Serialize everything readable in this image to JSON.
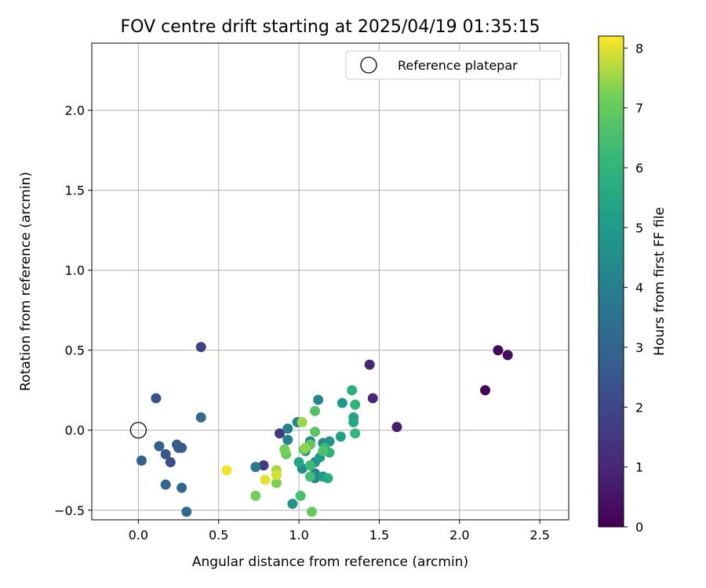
{
  "chart_data": {
    "type": "scatter",
    "title": "FOV centre drift starting at 2025/04/19 01:35:15",
    "xlabel": "Angular distance from reference (arcmin)",
    "ylabel": "Rotation from reference (arcmin)",
    "xlim": [
      -0.29,
      2.68
    ],
    "ylim": [
      -0.56,
      2.42
    ],
    "xticks": [
      "0.0",
      "0.5",
      "1.0",
      "1.5",
      "2.0",
      "2.5"
    ],
    "xtick_values": [
      0.0,
      0.5,
      1.0,
      1.5,
      2.0,
      2.5
    ],
    "yticks": [
      "−0.5",
      "0.0",
      "0.5",
      "1.0",
      "1.5",
      "2.0"
    ],
    "ytick_values": [
      -0.5,
      0.0,
      0.5,
      1.0,
      1.5,
      2.0
    ],
    "grid": true,
    "legend": {
      "position": "top-right",
      "entries": [
        "Reference platepar"
      ]
    },
    "reference_point": {
      "x": 0.0,
      "y": 0.0,
      "label": "Reference platepar"
    },
    "colorbar": {
      "label": "Hours from first FF file",
      "colormap": "viridis",
      "range": [
        0,
        8.2
      ],
      "ticks": [
        "0",
        "1",
        "2",
        "3",
        "4",
        "5",
        "6",
        "7",
        "8"
      ],
      "tick_values": [
        0,
        1,
        2,
        3,
        4,
        5,
        6,
        7,
        8
      ]
    },
    "points": [
      {
        "x": 2.16,
        "y": 0.25,
        "c": 0.05
      },
      {
        "x": 2.24,
        "y": 0.5,
        "c": 0.15
      },
      {
        "x": 2.3,
        "y": 0.47,
        "c": 0.25
      },
      {
        "x": 1.61,
        "y": 0.02,
        "c": 0.8
      },
      {
        "x": 1.44,
        "y": 0.41,
        "c": 1.0
      },
      {
        "x": 1.46,
        "y": 0.2,
        "c": 1.0
      },
      {
        "x": 0.88,
        "y": -0.02,
        "c": 1.5
      },
      {
        "x": 0.78,
        "y": -0.22,
        "c": 1.6
      },
      {
        "x": 0.39,
        "y": 0.52,
        "c": 1.9
      },
      {
        "x": 0.11,
        "y": 0.2,
        "c": 2.3
      },
      {
        "x": 0.2,
        "y": -0.2,
        "c": 2.2
      },
      {
        "x": 0.27,
        "y": -0.11,
        "c": 2.6
      },
      {
        "x": 0.17,
        "y": -0.15,
        "c": 2.5
      },
      {
        "x": 0.13,
        "y": -0.1,
        "c": 2.8
      },
      {
        "x": 0.24,
        "y": -0.09,
        "c": 2.7
      },
      {
        "x": 0.25,
        "y": -0.11,
        "c": 2.7
      },
      {
        "x": 0.02,
        "y": -0.19,
        "c": 2.9
      },
      {
        "x": 0.17,
        "y": -0.34,
        "c": 3.0
      },
      {
        "x": 0.27,
        "y": -0.36,
        "c": 3.1
      },
      {
        "x": 0.3,
        "y": -0.51,
        "c": 3.2
      },
      {
        "x": 0.39,
        "y": 0.08,
        "c": 3.2
      },
      {
        "x": 0.73,
        "y": -0.23,
        "c": 3.7
      },
      {
        "x": 0.93,
        "y": 0.01,
        "c": 3.9
      },
      {
        "x": 0.93,
        "y": -0.06,
        "c": 4.1
      },
      {
        "x": 0.99,
        "y": 0.05,
        "c": 4.3
      },
      {
        "x": 1.12,
        "y": 0.19,
        "c": 4.3
      },
      {
        "x": 1.07,
        "y": -0.07,
        "c": 4.2
      },
      {
        "x": 1.1,
        "y": -0.27,
        "c": 4.2
      },
      {
        "x": 1.1,
        "y": -0.3,
        "c": 4.3
      },
      {
        "x": 1.02,
        "y": -0.24,
        "c": 4.5
      },
      {
        "x": 1.15,
        "y": -0.08,
        "c": 4.5
      },
      {
        "x": 1.19,
        "y": -0.07,
        "c": 4.7
      },
      {
        "x": 1.1,
        "y": -0.2,
        "c": 4.6
      },
      {
        "x": 1.04,
        "y": -0.13,
        "c": 4.4
      },
      {
        "x": 0.96,
        "y": -0.46,
        "c": 4.8
      },
      {
        "x": 1.13,
        "y": -0.17,
        "c": 5.0
      },
      {
        "x": 1.15,
        "y": -0.29,
        "c": 5.0
      },
      {
        "x": 1.27,
        "y": 0.17,
        "c": 5.0
      },
      {
        "x": 1.26,
        "y": -0.04,
        "c": 5.2
      },
      {
        "x": 1.34,
        "y": 0.08,
        "c": 5.3
      },
      {
        "x": 1.34,
        "y": 0.05,
        "c": 5.5
      },
      {
        "x": 1.0,
        "y": -0.2,
        "c": 5.4
      },
      {
        "x": 1.18,
        "y": -0.3,
        "c": 5.6
      },
      {
        "x": 1.33,
        "y": 0.25,
        "c": 5.8
      },
      {
        "x": 1.35,
        "y": 0.16,
        "c": 6.0
      },
      {
        "x": 1.35,
        "y": -0.02,
        "c": 6.1
      },
      {
        "x": 1.19,
        "y": -0.14,
        "c": 6.0
      },
      {
        "x": 1.16,
        "y": -0.11,
        "c": 6.2
      },
      {
        "x": 1.07,
        "y": -0.22,
        "c": 6.3
      },
      {
        "x": 1.07,
        "y": -0.29,
        "c": 6.4
      },
      {
        "x": 1.01,
        "y": -0.41,
        "c": 6.5
      },
      {
        "x": 1.15,
        "y": -0.13,
        "c": 6.6
      },
      {
        "x": 1.1,
        "y": 0.12,
        "c": 6.7
      },
      {
        "x": 1.1,
        "y": -0.01,
        "c": 6.8
      },
      {
        "x": 1.07,
        "y": -0.09,
        "c": 6.9
      },
      {
        "x": 1.03,
        "y": -0.12,
        "c": 7.0
      },
      {
        "x": 1.08,
        "y": -0.51,
        "c": 7.0
      },
      {
        "x": 0.92,
        "y": -0.15,
        "c": 7.1
      },
      {
        "x": 0.91,
        "y": -0.12,
        "c": 7.2
      },
      {
        "x": 0.86,
        "y": -0.33,
        "c": 7.3
      },
      {
        "x": 0.73,
        "y": -0.41,
        "c": 7.2
      },
      {
        "x": 1.04,
        "y": -0.11,
        "c": 7.4
      },
      {
        "x": 1.02,
        "y": 0.05,
        "c": 7.5
      },
      {
        "x": 0.86,
        "y": -0.25,
        "c": 7.6
      },
      {
        "x": 0.86,
        "y": -0.28,
        "c": 7.9
      },
      {
        "x": 0.79,
        "y": -0.31,
        "c": 8.0
      },
      {
        "x": 0.55,
        "y": -0.25,
        "c": 8.1
      }
    ]
  }
}
